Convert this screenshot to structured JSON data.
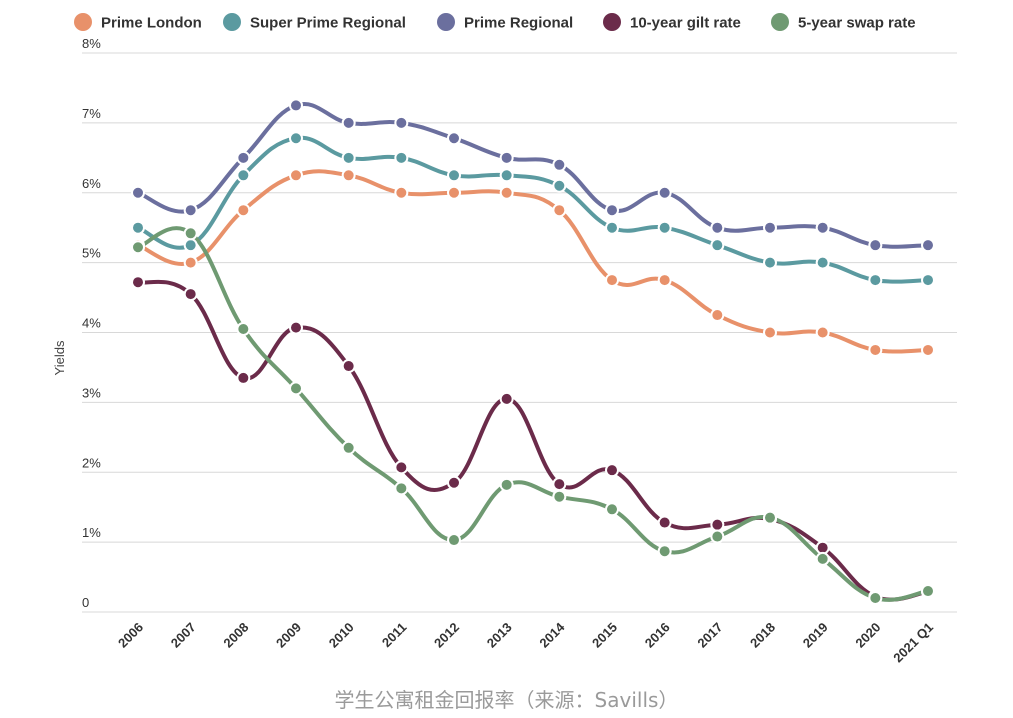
{
  "caption": "学生公寓租金回报率（来源：Savills）",
  "chart_data": {
    "type": "line",
    "title": "",
    "xlabel": "",
    "ylabel": "Yields",
    "ylim": [
      0,
      8
    ],
    "yticks": [
      {
        "value": 0,
        "label": "0"
      },
      {
        "value": 1,
        "label": "1%"
      },
      {
        "value": 2,
        "label": "2%"
      },
      {
        "value": 3,
        "label": "3%"
      },
      {
        "value": 4,
        "label": "4%"
      },
      {
        "value": 5,
        "label": "5%"
      },
      {
        "value": 6,
        "label": "6%"
      },
      {
        "value": 7,
        "label": "7%"
      },
      {
        "value": 8,
        "label": "8%"
      }
    ],
    "categories": [
      "2006",
      "2007",
      "2008",
      "2009",
      "2010",
      "2011",
      "2012",
      "2013",
      "2014",
      "2015",
      "2016",
      "2017",
      "2018",
      "2019",
      "2020",
      "2021 Q1"
    ],
    "grid": true,
    "legend_position": "top",
    "series": [
      {
        "name": "Prime London",
        "color": "#e8916a",
        "values": [
          5.25,
          5.0,
          5.75,
          6.25,
          6.25,
          6.0,
          6.0,
          6.0,
          5.75,
          4.75,
          4.75,
          4.25,
          4.0,
          4.0,
          3.75,
          3.75
        ]
      },
      {
        "name": "Super Prime Regional",
        "color": "#5b9aa0",
        "values": [
          5.5,
          5.25,
          6.25,
          6.78,
          6.5,
          6.5,
          6.25,
          6.25,
          6.1,
          5.5,
          5.5,
          5.25,
          5.0,
          5.0,
          4.75,
          4.75
        ]
      },
      {
        "name": "Prime Regional",
        "color": "#6b6f9e",
        "values": [
          6.0,
          5.75,
          6.5,
          7.25,
          7.0,
          7.0,
          6.78,
          6.5,
          6.4,
          5.75,
          6.0,
          5.5,
          5.5,
          5.5,
          5.25,
          5.25
        ]
      },
      {
        "name": "10-year gilt rate",
        "color": "#6b2b4a",
        "values": [
          4.72,
          4.55,
          3.35,
          4.07,
          3.52,
          2.07,
          1.85,
          3.05,
          1.83,
          2.03,
          1.28,
          1.25,
          1.33,
          0.92,
          0.22,
          0.29
        ]
      },
      {
        "name": "5-year swap rate",
        "color": "#6f9a72",
        "values": [
          5.22,
          5.42,
          4.05,
          3.2,
          2.35,
          1.77,
          1.03,
          1.82,
          1.65,
          1.47,
          0.87,
          1.08,
          1.35,
          0.76,
          0.2,
          0.3
        ]
      }
    ]
  }
}
